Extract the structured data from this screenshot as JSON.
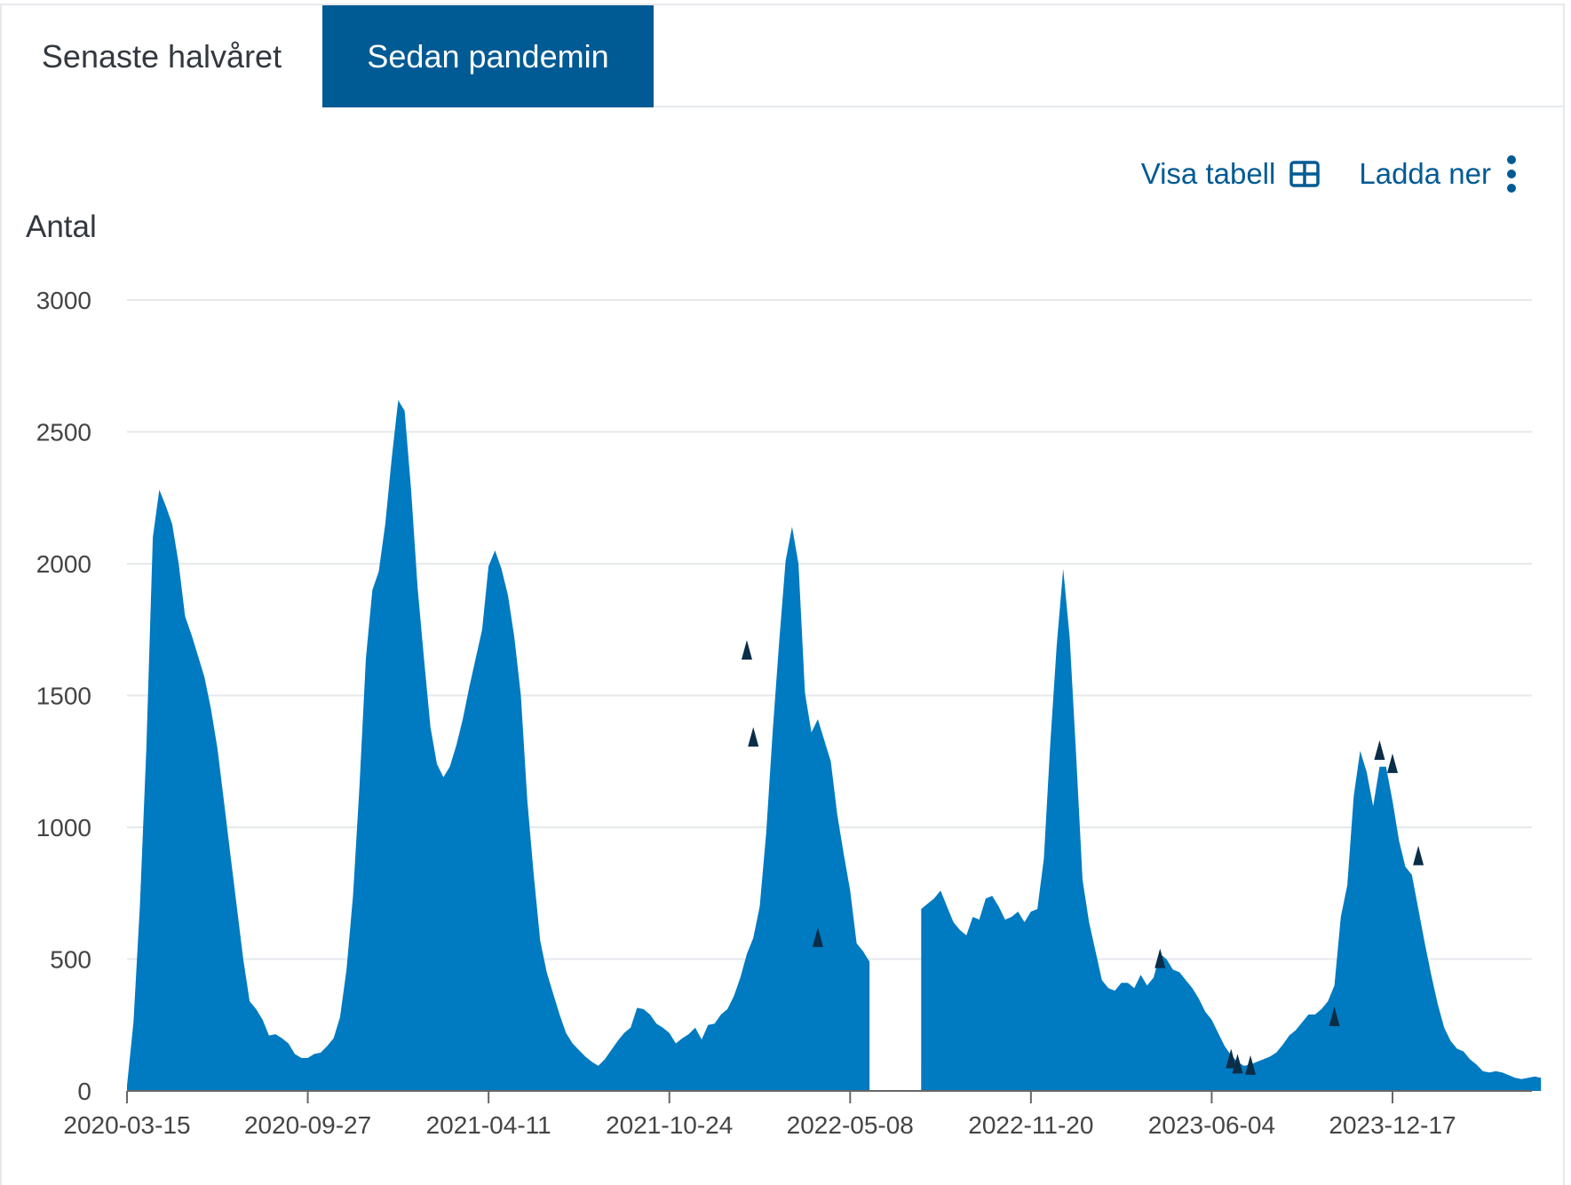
{
  "tabs": [
    {
      "label": "Senaste halvåret",
      "active": false
    },
    {
      "label": "Sedan pandemin",
      "active": true
    }
  ],
  "actions": {
    "show_table_label": "Visa tabell",
    "show_table_icon": "table-grid-icon",
    "download_label": "Ladda ner",
    "menu_icon": "kebab-menu-icon"
  },
  "colors": {
    "accent": "#005a94",
    "area_fill": "#007ac1",
    "overlay_fill": "#0a2d48",
    "grid": "#e6e9ec"
  },
  "chart_data": {
    "type": "area",
    "ylabel": "Antal",
    "xlabel": "",
    "ylim": [
      0,
      3000
    ],
    "yticks": [
      0,
      500,
      1000,
      1500,
      2000,
      2500,
      3000
    ],
    "xticks": [
      "2020-03-15",
      "2020-09-27",
      "2021-04-11",
      "2021-10-24",
      "2022-05-08",
      "2022-11-20",
      "2023-06-04",
      "2023-12-17"
    ],
    "grid": true,
    "legend": "none",
    "x_start": "2020-03-15",
    "x_step_weeks": 1,
    "gap": {
      "from": "2022-05-15",
      "to": "2022-07-17"
    },
    "series": [
      {
        "segment": "2020-03-15 to 2022-05-08",
        "values": [
          20,
          260,
          700,
          1300,
          2100,
          2280,
          2220,
          2150,
          2000,
          1800,
          1730,
          1650,
          1570,
          1450,
          1300,
          1100,
          900,
          700,
          500,
          340,
          310,
          270,
          210,
          215,
          200,
          180,
          140,
          125,
          125,
          140,
          145,
          170,
          200,
          280,
          460,
          740,
          1150,
          1640,
          1900,
          1970,
          2150,
          2400,
          2620,
          2580,
          2280,
          1910,
          1640,
          1380,
          1240,
          1190,
          1230,
          1310,
          1410,
          1530,
          1640,
          1750,
          1990,
          2050,
          1980,
          1880,
          1720,
          1500,
          1100,
          820,
          570,
          450,
          370,
          290,
          220,
          180,
          155,
          130,
          110,
          95,
          120,
          155,
          190,
          220,
          240,
          315,
          310,
          290,
          255,
          240,
          220,
          180,
          200,
          215,
          240,
          195,
          250,
          255,
          290,
          310,
          360,
          430,
          520,
          580,
          700,
          980,
          1360,
          1700,
          2010,
          2140,
          2000,
          1510,
          1360,
          1410,
          1330,
          1250,
          1050,
          900,
          760,
          560,
          530,
          490
        ]
      },
      {
        "segment": "2022-07-24 onward",
        "values": [
          690,
          710,
          730,
          760,
          700,
          640,
          610,
          590,
          660,
          650,
          730,
          740,
          700,
          650,
          660,
          680,
          640,
          680,
          690,
          880,
          1320,
          1690,
          1980,
          1720,
          1270,
          800,
          640,
          530,
          420,
          390,
          380,
          410,
          410,
          390,
          440,
          400,
          430,
          520,
          500,
          460,
          450,
          420,
          390,
          350,
          300,
          270,
          220,
          170,
          135,
          110,
          95,
          100,
          110,
          120,
          130,
          145,
          175,
          210,
          230,
          260,
          290,
          290,
          310,
          340,
          400,
          660,
          780,
          1120,
          1290,
          1210,
          1080,
          1230,
          1230,
          1100,
          950,
          850,
          820,
          690,
          560,
          440,
          330,
          240,
          190,
          160,
          150,
          120,
          100,
          75,
          70,
          75,
          70,
          60,
          50,
          45,
          50,
          55,
          50
        ]
      }
    ],
    "overlay": {
      "description_colour": "dark navy",
      "points": [
        [
          "2022-01-16",
          1710
        ],
        [
          "2022-01-23",
          1380
        ],
        [
          "2022-04-03",
          620
        ],
        [
          "2023-04-09",
          540
        ],
        [
          "2023-06-25",
          160
        ],
        [
          "2023-07-02",
          140
        ],
        [
          "2023-07-16",
          135
        ],
        [
          "2023-10-15",
          320
        ],
        [
          "2023-12-03",
          1330
        ],
        [
          "2023-12-17",
          1280
        ],
        [
          "2024-01-14",
          930
        ]
      ]
    }
  }
}
